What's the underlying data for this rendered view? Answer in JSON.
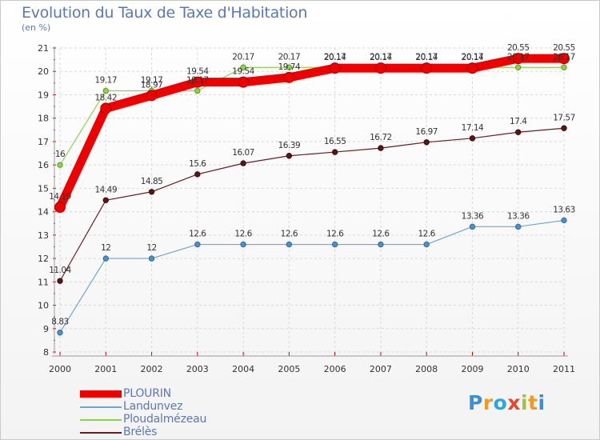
{
  "chart_data": {
    "type": "line",
    "title": "Evolution du Taux de Taxe d'Habitation",
    "subtitle": "(en %)",
    "ylim": [
      8,
      21
    ],
    "yticks": [
      "8",
      "9",
      "10",
      "11",
      "12",
      "13",
      "14",
      "15",
      "16",
      "17",
      "18",
      "19",
      "20",
      "21"
    ],
    "x": [
      "2000",
      "2001",
      "2002",
      "2003",
      "2004",
      "2005",
      "2006",
      "2007",
      "2008",
      "2009",
      "2010",
      "2011"
    ],
    "grid": true,
    "series": [
      {
        "name": "Brélès",
        "color": "#6b1b1b",
        "values": [
          11.04,
          14.49,
          14.85,
          15.6,
          16.07,
          16.39,
          16.55,
          16.72,
          16.97,
          17.14,
          17.4,
          17.57
        ],
        "labels": [
          "11.04",
          "14.49",
          "14.85",
          "15.6",
          "16.07",
          "16.39",
          "16.55",
          "16.72",
          "16.97",
          "17.14",
          "17.4",
          "17.57"
        ]
      },
      {
        "name": "Landunvez",
        "color": "#6fa4d8",
        "values": [
          8.83,
          12,
          12,
          12.6,
          12.6,
          12.6,
          12.6,
          12.6,
          12.6,
          13.36,
          13.36,
          13.63
        ],
        "labels": [
          "8.83",
          "12",
          "12",
          "12.6",
          "12.6",
          "12.6",
          "12.6",
          "12.6",
          "12.6",
          "13.36",
          "13.36",
          "13.63"
        ]
      },
      {
        "name": "Ploudalmézeau",
        "color": "#8fd14f",
        "values": [
          16,
          19.17,
          19.17,
          19.17,
          20.17,
          20.17,
          20.17,
          20.17,
          20.17,
          20.17,
          20.17,
          20.17
        ],
        "labels": [
          "16",
          "19.17",
          "19.17",
          "19.17",
          "20.17",
          "20.17",
          "20.17",
          "20.17",
          "20.17",
          "20.17",
          "20.17",
          "20.17"
        ]
      },
      {
        "name": "PLOURIN",
        "color": "#ee0000",
        "values": [
          14.19,
          18.42,
          18.97,
          19.54,
          19.54,
          19.74,
          20.14,
          20.14,
          20.14,
          20.14,
          20.55,
          20.55
        ],
        "labels": [
          "14.19",
          "18.42",
          "18.97",
          "19.54",
          "19.54",
          "19.74",
          "20.14",
          "20.14",
          "20.14",
          "20.14",
          "20.55",
          "20.55"
        ]
      }
    ],
    "legend": {
      "placement": "bottom-left",
      "order": [
        "PLOURIN",
        "Landunvez",
        "Ploudalmézeau",
        "Brélès"
      ]
    }
  },
  "logo": {
    "text": "Proxiti",
    "letters": [
      "P",
      "r",
      "o",
      "x",
      "i",
      "t",
      "i"
    ],
    "colors": [
      "#3a8fd6",
      "#f39a1e",
      "#2aa7e0",
      "#e8462c",
      "#9bc53d",
      "#f39a1e",
      "#3a8fd6"
    ]
  },
  "colors": {
    "title": "#5a78b8",
    "axis": "#333333",
    "grid": "#d8d8d8"
  }
}
